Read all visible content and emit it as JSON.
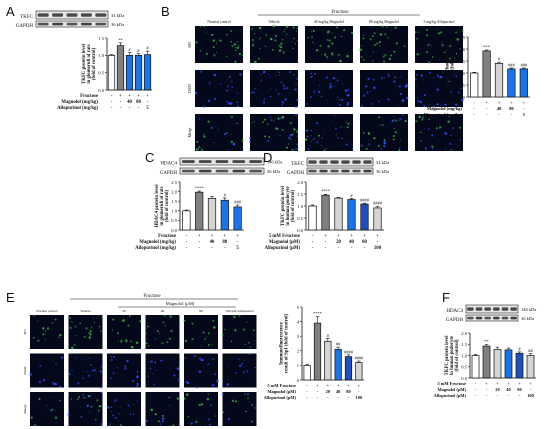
{
  "panel_letters": {
    "A": "A",
    "B": "B",
    "C": "C",
    "D": "D",
    "E": "E",
    "F": "F"
  },
  "colors": {
    "white_bar": "#ffffff",
    "dark_gray": "#808080",
    "light_gray": "#d4d4d4",
    "blue_1": "#1a73e8",
    "blue_2": "#1f4fbf",
    "micro_bg": "#03081a",
    "stain_green": "#3aa845",
    "stain_blue": "#2d4cff"
  },
  "panel_A": {
    "blots": [
      {
        "name": "TKFC",
        "size": "34 kDa"
      },
      {
        "name": "GAPDH",
        "size": "36 kDa"
      }
    ],
    "ylabel": [
      "TKFC protein level",
      "in glomeruli of rats",
      "(fold of control)"
    ],
    "ticks": [
      "0.0",
      "0.5",
      "1.0",
      "1.5"
    ],
    "treatments": [
      {
        "label": "Fructose",
        "values": [
          "-",
          "+",
          "+",
          "+",
          "+"
        ]
      },
      {
        "label": "Magnolol (mg/kg)",
        "values": [
          "-",
          "-",
          "40",
          "80",
          "-"
        ]
      },
      {
        "label": "Allopurinol (mg/kg)",
        "values": [
          "-",
          "-",
          "-",
          "-",
          "5"
        ]
      }
    ],
    "sig": [
      "",
      "**",
      "#",
      "#",
      "#"
    ]
  },
  "panel_B": {
    "group_header": "Fructose",
    "columns": [
      "Normal control",
      "Vehicle",
      "40 mg/kg Magnolol",
      "80 mg/kg Magnolol",
      "5 mg/kg Allopurinol"
    ],
    "rows": [
      "SP1",
      "DAPI",
      "Merge"
    ],
    "ylabel": [
      "Immunofluorescence",
      "result of Sp1 (fold of control)"
    ],
    "ticks": [
      "0.0",
      "0.5",
      "1.0",
      "1.5",
      "2.0",
      "2.5"
    ],
    "treatments": [
      {
        "label": "Fructose",
        "values": [
          "-",
          "+",
          "+",
          "+",
          "+"
        ]
      },
      {
        "label": "Magnolol (mg/kg)",
        "values": [
          "-",
          "-",
          "40",
          "80",
          "-"
        ]
      },
      {
        "label": "Allopurinol (mg/kg)",
        "values": [
          "-",
          "-",
          "-",
          "-",
          "5"
        ]
      }
    ],
    "sig": [
      "",
      "***",
      "#",
      "###",
      "###"
    ]
  },
  "panel_C": {
    "blots": [
      {
        "name": "HDAC4",
        "size": "140 kDa"
      },
      {
        "name": "GAPDH",
        "size": "36 kDa"
      }
    ],
    "ylabel": [
      "HDAC4 protein level",
      "in glomeruli of rats",
      "(fold of control)"
    ],
    "ticks": [
      "0.0",
      "0.5",
      "1.0",
      "1.5",
      "2.0",
      "2.5"
    ],
    "treatments": [
      {
        "label": "Fructose",
        "values": [
          "-",
          "+",
          "+",
          "+",
          "+"
        ]
      },
      {
        "label": "Magnolol (mg/kg)",
        "values": [
          "-",
          "-",
          "40",
          "80",
          "-"
        ]
      },
      {
        "label": "Allopurinol (mg/kg)",
        "values": [
          "-",
          "-",
          "-",
          "-",
          "5"
        ]
      }
    ],
    "sig": [
      "",
      "****",
      "",
      "#",
      "###"
    ]
  },
  "panel_D": {
    "blots": [
      {
        "name": "TKFC",
        "size": "34 kDa"
      },
      {
        "name": "GAPDH",
        "size": "36 kDa"
      }
    ],
    "ylabel": [
      "TKFC protein level",
      "in human podocyte",
      "(fold of control)"
    ],
    "ticks": [
      "0.0",
      "0.5",
      "1.0",
      "1.5",
      "2.0"
    ],
    "treatments": [
      {
        "label": "5 mM Fructose",
        "values": [
          "-",
          "+",
          "+",
          "+",
          "+",
          "+"
        ]
      },
      {
        "label": "Magnolol (μM)",
        "values": [
          "-",
          "-",
          "20",
          "40",
          "80",
          "-"
        ]
      },
      {
        "label": "Allopurinol (μM)",
        "values": [
          "-",
          "-",
          "-",
          "-",
          "-",
          "100"
        ]
      }
    ],
    "sig": [
      "",
      "****",
      "",
      "#",
      "####",
      "####"
    ]
  },
  "panel_E": {
    "group_header": "Fructose",
    "sub_header": "Magnolol (μM)",
    "columns": [
      "Normal control",
      "Vehicle",
      "20",
      "40",
      "80",
      "100 μM Allopurinol"
    ],
    "rows": [
      "SP1",
      "DAPI",
      "Merge"
    ],
    "ylabel": [
      "Immunofluorescence",
      "result of Sp1 (fold of control)"
    ],
    "ticks": [
      "0",
      "1",
      "2",
      "3",
      "4",
      "5"
    ],
    "treatments": [
      {
        "label": "5 mM Fructose",
        "values": [
          "-",
          "+",
          "+",
          "+",
          "+",
          "+"
        ]
      },
      {
        "label": "Magnolol (μM)",
        "values": [
          "-",
          "-",
          "20",
          "40",
          "80",
          "-"
        ]
      },
      {
        "label": "Allopurinol (μM)",
        "values": [
          "-",
          "-",
          "-",
          "-",
          "-",
          "100"
        ]
      }
    ],
    "sig": [
      "",
      "****",
      "#",
      "##",
      "####",
      "####"
    ]
  },
  "panel_F": {
    "blots": [
      {
        "name": "HDAC4",
        "size": "140 kDa"
      },
      {
        "name": "GAPDH",
        "size": "36 kDa"
      }
    ],
    "ylabel": [
      "TKFC protein level",
      "in human podocyte",
      "(fold of control)"
    ],
    "ticks": [
      "0.0",
      "0.5",
      "1.0",
      "1.5",
      "2.0"
    ],
    "treatments": [
      {
        "label": "5 mM Fructose",
        "values": [
          "-",
          "+",
          "+",
          "+",
          "+",
          "+"
        ]
      },
      {
        "label": "Magnolol (μM)",
        "values": [
          "-",
          "-",
          "20",
          "40",
          "80",
          "-"
        ]
      },
      {
        "label": "Allopurinol (μM)",
        "values": [
          "-",
          "-",
          "-",
          "-",
          "-",
          "100"
        ]
      }
    ],
    "sig": [
      "",
      "**",
      "",
      "",
      "#",
      "##"
    ]
  },
  "chart_data": [
    {
      "type": "bar",
      "panel": "A",
      "categories": [
        "1",
        "2",
        "3",
        "4",
        "5"
      ],
      "values": [
        1.0,
        1.28,
        1.0,
        1.0,
        1.02
      ],
      "errors": [
        0.03,
        0.08,
        0.08,
        0.05,
        0.1
      ],
      "ylim": [
        0,
        1.5
      ]
    },
    {
      "type": "bar",
      "panel": "B",
      "categories": [
        "1",
        "2",
        "3",
        "4",
        "5"
      ],
      "values": [
        1.0,
        1.92,
        1.4,
        1.17,
        1.17
      ],
      "errors": [
        0.03,
        0.04,
        0.05,
        0.04,
        0.04
      ],
      "ylim": [
        0,
        2.5
      ]
    },
    {
      "type": "bar",
      "panel": "C",
      "categories": [
        "1",
        "2",
        "3",
        "4",
        "5"
      ],
      "values": [
        1.0,
        1.97,
        1.65,
        1.55,
        1.2
      ],
      "errors": [
        0.04,
        0.06,
        0.1,
        0.12,
        0.1
      ],
      "ylim": [
        0,
        2.5
      ]
    },
    {
      "type": "bar",
      "panel": "D",
      "categories": [
        "1",
        "2",
        "3",
        "4",
        "5",
        "6"
      ],
      "values": [
        1.0,
        1.45,
        1.33,
        1.27,
        1.08,
        0.92
      ],
      "errors": [
        0.04,
        0.04,
        0.03,
        0.05,
        0.04,
        0.07
      ],
      "ylim": [
        0,
        2.0
      ]
    },
    {
      "type": "bar",
      "panel": "E",
      "categories": [
        "1",
        "2",
        "3",
        "4",
        "5",
        "6"
      ],
      "values": [
        1.0,
        3.9,
        2.65,
        2.1,
        1.6,
        1.2
      ],
      "errors": [
        0.08,
        0.45,
        0.2,
        0.15,
        0.12,
        0.1
      ],
      "ylim": [
        0,
        5
      ]
    },
    {
      "type": "bar",
      "panel": "F",
      "categories": [
        "1",
        "2",
        "3",
        "4",
        "5",
        "6"
      ],
      "values": [
        1.0,
        1.42,
        1.27,
        1.25,
        1.1,
        1.0
      ],
      "errors": [
        0.05,
        0.06,
        0.1,
        0.08,
        0.06,
        0.08
      ],
      "ylim": [
        0,
        2.0
      ]
    }
  ]
}
